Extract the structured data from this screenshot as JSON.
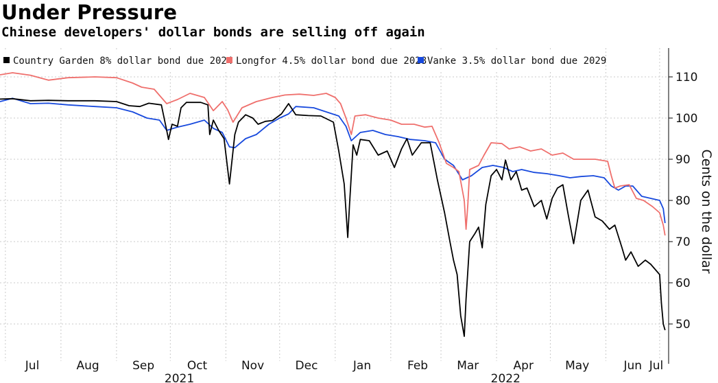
{
  "chart_data": {
    "type": "line",
    "title": "Under Pressure",
    "subtitle": "Chinese developers' dollar bonds are selling off again",
    "ylabel": "Cents on the dollar",
    "xlabel": "",
    "ylim": [
      41,
      117
    ],
    "yticks": [
      50,
      60,
      70,
      80,
      90,
      100,
      110
    ],
    "xlim": [
      "2021-06-28",
      "2022-07-06"
    ],
    "grid": true,
    "legend_position": "top-left",
    "x_ticks": [
      {
        "date": "2021-07-01",
        "label": "Jul"
      },
      {
        "date": "2021-08-01",
        "label": "Aug"
      },
      {
        "date": "2021-09-01",
        "label": "Sep"
      },
      {
        "date": "2021-10-01",
        "label": "Oct",
        "year": "2021"
      },
      {
        "date": "2021-11-01",
        "label": "Nov"
      },
      {
        "date": "2021-12-01",
        "label": "Dec"
      },
      {
        "date": "2022-01-01",
        "label": "Jan"
      },
      {
        "date": "2022-02-01",
        "label": "Feb"
      },
      {
        "date": "2022-03-01",
        "label": "Mar"
      },
      {
        "date": "2022-04-01",
        "label": "Apr",
        "year": "2022"
      },
      {
        "date": "2022-05-01",
        "label": "May"
      },
      {
        "date": "2022-06-01",
        "label": "Jun"
      },
      {
        "date": "2022-07-01",
        "label": "Jul"
      }
    ],
    "series": [
      {
        "name": "Country Garden 8% dollar bond due 2024",
        "color": "#000000",
        "points": [
          [
            "2021-06-28",
            104.6
          ],
          [
            "2021-07-05",
            104.7
          ],
          [
            "2021-07-15",
            104.2
          ],
          [
            "2021-07-25",
            104.3
          ],
          [
            "2021-08-05",
            104.2
          ],
          [
            "2021-08-20",
            104.2
          ],
          [
            "2021-09-01",
            104.0
          ],
          [
            "2021-09-08",
            103.0
          ],
          [
            "2021-09-14",
            102.8
          ],
          [
            "2021-09-19",
            103.6
          ],
          [
            "2021-09-26",
            103.2
          ],
          [
            "2021-09-29",
            97.0
          ],
          [
            "2021-09-30",
            94.8
          ],
          [
            "2021-10-02",
            98.5
          ],
          [
            "2021-10-05",
            98.0
          ],
          [
            "2021-10-07",
            102.5
          ],
          [
            "2021-10-10",
            103.8
          ],
          [
            "2021-10-18",
            103.8
          ],
          [
            "2021-10-22",
            103.2
          ],
          [
            "2021-10-23",
            96.0
          ],
          [
            "2021-10-25",
            99.5
          ],
          [
            "2021-10-28",
            97.0
          ],
          [
            "2021-10-31",
            95.0
          ],
          [
            "2021-11-03",
            84.0
          ],
          [
            "2021-11-06",
            96.0
          ],
          [
            "2021-11-08",
            99.0
          ],
          [
            "2021-11-12",
            100.8
          ],
          [
            "2021-11-16",
            100.0
          ],
          [
            "2021-11-19",
            98.5
          ],
          [
            "2021-11-23",
            99.2
          ],
          [
            "2021-11-27",
            99.4
          ],
          [
            "2021-12-02",
            101.0
          ],
          [
            "2021-12-06",
            103.5
          ],
          [
            "2021-12-10",
            100.8
          ],
          [
            "2021-12-17",
            100.6
          ],
          [
            "2021-12-24",
            100.5
          ],
          [
            "2021-12-31",
            99.0
          ],
          [
            "2022-01-03",
            92.0
          ],
          [
            "2022-01-06",
            84.0
          ],
          [
            "2022-01-08",
            71.0
          ],
          [
            "2022-01-09",
            79.0
          ],
          [
            "2022-01-11",
            93.5
          ],
          [
            "2022-01-13",
            91.0
          ],
          [
            "2022-01-15",
            94.8
          ],
          [
            "2022-01-20",
            94.5
          ],
          [
            "2022-01-25",
            91.0
          ],
          [
            "2022-01-30",
            92.0
          ],
          [
            "2022-02-03",
            88.0
          ],
          [
            "2022-02-07",
            92.5
          ],
          [
            "2022-02-10",
            95.0
          ],
          [
            "2022-02-13",
            91.0
          ],
          [
            "2022-02-18",
            94.0
          ],
          [
            "2022-02-23",
            94.0
          ],
          [
            "2022-02-27",
            85.0
          ],
          [
            "2022-03-03",
            77.0
          ],
          [
            "2022-03-06",
            70.0
          ],
          [
            "2022-03-08",
            65.5
          ],
          [
            "2022-03-10",
            62.0
          ],
          [
            "2022-03-12",
            52.0
          ],
          [
            "2022-03-14",
            47.0
          ],
          [
            "2022-03-15",
            56.0
          ],
          [
            "2022-03-17",
            70.0
          ],
          [
            "2022-03-20",
            72.0
          ],
          [
            "2022-03-22",
            73.5
          ],
          [
            "2022-03-24",
            68.5
          ],
          [
            "2022-03-26",
            79.0
          ],
          [
            "2022-03-29",
            86.0
          ],
          [
            "2022-04-01",
            87.5
          ],
          [
            "2022-04-04",
            85.0
          ],
          [
            "2022-04-06",
            89.8
          ],
          [
            "2022-04-09",
            85.0
          ],
          [
            "2022-04-12",
            87.0
          ],
          [
            "2022-04-15",
            82.5
          ],
          [
            "2022-04-18",
            83.0
          ],
          [
            "2022-04-22",
            78.5
          ],
          [
            "2022-04-26",
            80.0
          ],
          [
            "2022-04-29",
            75.5
          ],
          [
            "2022-05-02",
            80.5
          ],
          [
            "2022-05-05",
            83.0
          ],
          [
            "2022-05-08",
            83.8
          ],
          [
            "2022-05-11",
            76.5
          ],
          [
            "2022-05-14",
            69.5
          ],
          [
            "2022-05-18",
            80.0
          ],
          [
            "2022-05-22",
            82.5
          ],
          [
            "2022-05-26",
            76.0
          ],
          [
            "2022-05-30",
            75.0
          ],
          [
            "2022-06-03",
            73.0
          ],
          [
            "2022-06-06",
            74.0
          ],
          [
            "2022-06-10",
            68.5
          ],
          [
            "2022-06-12",
            65.5
          ],
          [
            "2022-06-15",
            67.5
          ],
          [
            "2022-06-19",
            64.0
          ],
          [
            "2022-06-23",
            65.5
          ],
          [
            "2022-06-26",
            64.5
          ],
          [
            "2022-06-29",
            63.0
          ],
          [
            "2022-07-01",
            62.0
          ],
          [
            "2022-07-02",
            55.0
          ],
          [
            "2022-07-03",
            50.0
          ],
          [
            "2022-07-04",
            48.5
          ]
        ]
      },
      {
        "name": "Longfor 4.5% dollar bond due 2028",
        "color": "#ef6f6c",
        "points": [
          [
            "2021-06-28",
            110.5
          ],
          [
            "2021-07-05",
            111.0
          ],
          [
            "2021-07-15",
            110.4
          ],
          [
            "2021-07-25",
            109.2
          ],
          [
            "2021-08-05",
            109.8
          ],
          [
            "2021-08-20",
            110.0
          ],
          [
            "2021-09-01",
            109.8
          ],
          [
            "2021-09-10",
            108.5
          ],
          [
            "2021-09-15",
            107.5
          ],
          [
            "2021-09-22",
            107.0
          ],
          [
            "2021-09-29",
            103.5
          ],
          [
            "2021-10-05",
            104.5
          ],
          [
            "2021-10-12",
            106.0
          ],
          [
            "2021-10-20",
            105.0
          ],
          [
            "2021-10-25",
            101.8
          ],
          [
            "2021-10-30",
            104.0
          ],
          [
            "2021-11-02",
            102.0
          ],
          [
            "2021-11-05",
            99.0
          ],
          [
            "2021-11-10",
            102.5
          ],
          [
            "2021-11-18",
            104.0
          ],
          [
            "2021-11-27",
            105.0
          ],
          [
            "2021-12-04",
            105.6
          ],
          [
            "2021-12-12",
            105.8
          ],
          [
            "2021-12-20",
            105.5
          ],
          [
            "2021-12-27",
            106.0
          ],
          [
            "2022-01-01",
            105.0
          ],
          [
            "2022-01-04",
            103.5
          ],
          [
            "2022-01-07",
            100.0
          ],
          [
            "2022-01-10",
            96.0
          ],
          [
            "2022-01-12",
            100.5
          ],
          [
            "2022-01-18",
            100.8
          ],
          [
            "2022-01-25",
            100.0
          ],
          [
            "2022-02-01",
            99.5
          ],
          [
            "2022-02-07",
            98.5
          ],
          [
            "2022-02-14",
            98.5
          ],
          [
            "2022-02-20",
            97.8
          ],
          [
            "2022-02-24",
            98.0
          ],
          [
            "2022-02-28",
            94.0
          ],
          [
            "2022-03-04",
            89.0
          ],
          [
            "2022-03-08",
            88.0
          ],
          [
            "2022-03-11",
            87.0
          ],
          [
            "2022-03-14",
            80.0
          ],
          [
            "2022-03-15",
            73.0
          ],
          [
            "2022-03-16",
            79.0
          ],
          [
            "2022-03-17",
            87.5
          ],
          [
            "2022-03-22",
            88.5
          ],
          [
            "2022-03-25",
            91.0
          ],
          [
            "2022-03-29",
            94.0
          ],
          [
            "2022-04-04",
            93.8
          ],
          [
            "2022-04-08",
            92.5
          ],
          [
            "2022-04-14",
            93.0
          ],
          [
            "2022-04-20",
            92.0
          ],
          [
            "2022-04-26",
            92.5
          ],
          [
            "2022-05-02",
            91.0
          ],
          [
            "2022-05-08",
            91.5
          ],
          [
            "2022-05-14",
            90.0
          ],
          [
            "2022-05-20",
            90.0
          ],
          [
            "2022-05-26",
            90.0
          ],
          [
            "2022-06-02",
            89.5
          ],
          [
            "2022-06-04",
            86.0
          ],
          [
            "2022-06-06",
            83.0
          ],
          [
            "2022-06-09",
            83.5
          ],
          [
            "2022-06-14",
            83.8
          ],
          [
            "2022-06-18",
            80.5
          ],
          [
            "2022-06-22",
            80.0
          ],
          [
            "2022-06-27",
            78.5
          ],
          [
            "2022-07-01",
            77.0
          ],
          [
            "2022-07-03",
            74.0
          ],
          [
            "2022-07-04",
            71.5
          ]
        ]
      },
      {
        "name": "Vanke 3.5% dollar bond due 2029",
        "color": "#1749dd",
        "points": [
          [
            "2021-06-28",
            104.0
          ],
          [
            "2021-07-05",
            104.8
          ],
          [
            "2021-07-15",
            103.5
          ],
          [
            "2021-07-25",
            103.6
          ],
          [
            "2021-08-05",
            103.2
          ],
          [
            "2021-08-20",
            102.8
          ],
          [
            "2021-09-01",
            102.5
          ],
          [
            "2021-09-10",
            101.5
          ],
          [
            "2021-09-18",
            100.0
          ],
          [
            "2021-09-25",
            99.5
          ],
          [
            "2021-09-29",
            97.0
          ],
          [
            "2021-10-05",
            97.8
          ],
          [
            "2021-10-12",
            98.5
          ],
          [
            "2021-10-20",
            99.5
          ],
          [
            "2021-10-25",
            97.5
          ],
          [
            "2021-10-30",
            96.5
          ],
          [
            "2021-11-03",
            93.0
          ],
          [
            "2021-11-06",
            92.8
          ],
          [
            "2021-11-12",
            95.0
          ],
          [
            "2021-11-18",
            96.0
          ],
          [
            "2021-11-25",
            98.5
          ],
          [
            "2021-12-01",
            100.0
          ],
          [
            "2021-12-06",
            101.0
          ],
          [
            "2021-12-10",
            102.8
          ],
          [
            "2021-12-20",
            102.5
          ],
          [
            "2021-12-27",
            101.5
          ],
          [
            "2022-01-03",
            100.5
          ],
          [
            "2022-01-07",
            98.0
          ],
          [
            "2022-01-10",
            94.5
          ],
          [
            "2022-01-15",
            96.5
          ],
          [
            "2022-01-22",
            97.0
          ],
          [
            "2022-01-29",
            96.0
          ],
          [
            "2022-02-05",
            95.5
          ],
          [
            "2022-02-12",
            94.8
          ],
          [
            "2022-02-20",
            94.5
          ],
          [
            "2022-02-26",
            94.0
          ],
          [
            "2022-03-03",
            90.0
          ],
          [
            "2022-03-08",
            88.5
          ],
          [
            "2022-03-13",
            85.0
          ],
          [
            "2022-03-18",
            86.0
          ],
          [
            "2022-03-24",
            88.0
          ],
          [
            "2022-03-30",
            88.5
          ],
          [
            "2022-04-05",
            88.0
          ],
          [
            "2022-04-10",
            87.0
          ],
          [
            "2022-04-15",
            87.5
          ],
          [
            "2022-04-22",
            86.8
          ],
          [
            "2022-04-29",
            86.5
          ],
          [
            "2022-05-06",
            86.0
          ],
          [
            "2022-05-12",
            85.5
          ],
          [
            "2022-05-18",
            85.8
          ],
          [
            "2022-05-25",
            86.0
          ],
          [
            "2022-05-31",
            85.5
          ],
          [
            "2022-06-04",
            83.5
          ],
          [
            "2022-06-08",
            82.5
          ],
          [
            "2022-06-12",
            83.5
          ],
          [
            "2022-06-16",
            83.5
          ],
          [
            "2022-06-21",
            81.0
          ],
          [
            "2022-06-26",
            80.5
          ],
          [
            "2022-07-01",
            80.0
          ],
          [
            "2022-07-03",
            78.0
          ],
          [
            "2022-07-04",
            74.5
          ]
        ]
      }
    ]
  }
}
